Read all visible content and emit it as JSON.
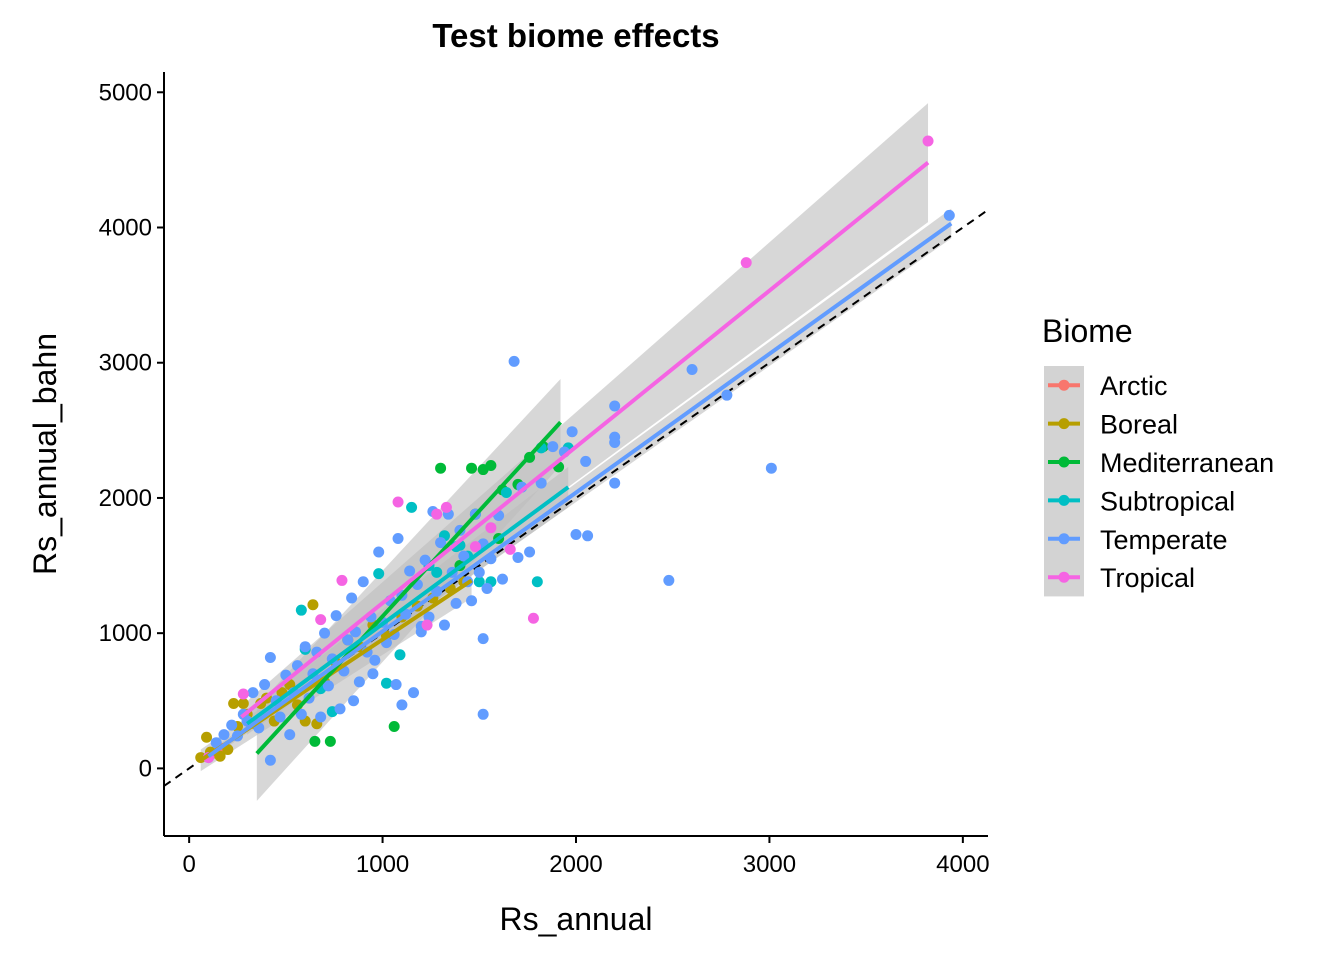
{
  "chart_data": {
    "type": "scatter",
    "title": "Test biome effects",
    "xlabel": "Rs_annual",
    "ylabel": "Rs_annual_bahn",
    "xlim": [
      -130,
      4130
    ],
    "ylim": [
      -500,
      5150
    ],
    "x_ticks": [
      0,
      1000,
      2000,
      3000,
      4000
    ],
    "y_ticks": [
      0,
      1000,
      2000,
      3000,
      4000,
      5000
    ],
    "grid": false,
    "legend": {
      "title": "Biome",
      "position": "right"
    },
    "reference_line": {
      "slope": 1,
      "intercept": 0,
      "style": "dashed"
    },
    "series": [
      {
        "name": "Arctic",
        "color": "#F8766D",
        "points": [
          [
            120,
            110
          ],
          [
            160,
            150
          ]
        ],
        "fit": null
      },
      {
        "name": "Boreal",
        "color": "#B79F00",
        "points": [
          [
            60,
            80
          ],
          [
            90,
            230
          ],
          [
            110,
            120
          ],
          [
            160,
            90
          ],
          [
            200,
            140
          ],
          [
            230,
            480
          ],
          [
            250,
            310
          ],
          [
            280,
            480
          ],
          [
            300,
            400
          ],
          [
            340,
            330
          ],
          [
            370,
            480
          ],
          [
            400,
            520
          ],
          [
            440,
            350
          ],
          [
            480,
            560
          ],
          [
            520,
            620
          ],
          [
            560,
            470
          ],
          [
            600,
            350
          ],
          [
            640,
            1210
          ],
          [
            660,
            330
          ],
          [
            700,
            640
          ],
          [
            760,
            780
          ],
          [
            820,
            950
          ],
          [
            880,
            900
          ],
          [
            950,
            1060
          ],
          [
            1020,
            980
          ],
          [
            1100,
            1120
          ],
          [
            1180,
            1200
          ],
          [
            1260,
            1260
          ],
          [
            1350,
            1330
          ],
          [
            1420,
            1380
          ]
        ],
        "fit": {
          "x": [
            60,
            1460
          ],
          "y": [
            60,
            1390
          ],
          "ci_width": [
            80,
            130
          ]
        }
      },
      {
        "name": "Mediterranean",
        "color": "#00BA38",
        "points": [
          [
            650,
            200
          ],
          [
            730,
            200
          ],
          [
            1060,
            310
          ],
          [
            1300,
            2220
          ],
          [
            1460,
            2220
          ],
          [
            1480,
            1880
          ],
          [
            1520,
            2210
          ],
          [
            1560,
            2240
          ],
          [
            1600,
            1700
          ],
          [
            1700,
            2100
          ],
          [
            1760,
            2300
          ],
          [
            1830,
            2380
          ],
          [
            1910,
            2230
          ],
          [
            1620,
            2060
          ],
          [
            1400,
            1500
          ]
        ],
        "fit": {
          "x": [
            350,
            1920
          ],
          "y": [
            110,
            2560
          ],
          "ci_width": [
            350,
            320
          ]
        }
      },
      {
        "name": "Subtropical",
        "color": "#00BFC4",
        "points": [
          [
            580,
            1170
          ],
          [
            600,
            880
          ],
          [
            680,
            590
          ],
          [
            740,
            420
          ],
          [
            980,
            1440
          ],
          [
            1020,
            630
          ],
          [
            1090,
            840
          ],
          [
            1150,
            1930
          ],
          [
            1240,
            1500
          ],
          [
            1280,
            1450
          ],
          [
            1320,
            1720
          ],
          [
            1380,
            1640
          ],
          [
            1440,
            1570
          ],
          [
            1500,
            1380
          ],
          [
            1560,
            1380
          ],
          [
            1640,
            2040
          ],
          [
            1800,
            1380
          ],
          [
            1820,
            2370
          ],
          [
            1960,
            2370
          ],
          [
            1400,
            1650
          ]
        ],
        "fit": {
          "x": [
            300,
            1960
          ],
          "y": [
            330,
            2080
          ],
          "ci_width": [
            80,
            150
          ]
        }
      },
      {
        "name": "Temperate",
        "color": "#619CFF",
        "points": [
          [
            100,
            80
          ],
          [
            140,
            190
          ],
          [
            180,
            250
          ],
          [
            220,
            320
          ],
          [
            250,
            240
          ],
          [
            280,
            400
          ],
          [
            300,
            350
          ],
          [
            330,
            560
          ],
          [
            360,
            300
          ],
          [
            390,
            620
          ],
          [
            420,
            820
          ],
          [
            450,
            500
          ],
          [
            470,
            380
          ],
          [
            500,
            690
          ],
          [
            520,
            250
          ],
          [
            540,
            560
          ],
          [
            560,
            760
          ],
          [
            580,
            400
          ],
          [
            600,
            900
          ],
          [
            620,
            520
          ],
          [
            640,
            700
          ],
          [
            660,
            860
          ],
          [
            680,
            380
          ],
          [
            700,
            1000
          ],
          [
            720,
            610
          ],
          [
            740,
            810
          ],
          [
            760,
            1130
          ],
          [
            780,
            440
          ],
          [
            800,
            720
          ],
          [
            820,
            950
          ],
          [
            840,
            1260
          ],
          [
            860,
            1010
          ],
          [
            880,
            640
          ],
          [
            900,
            1380
          ],
          [
            920,
            860
          ],
          [
            940,
            1120
          ],
          [
            960,
            800
          ],
          [
            980,
            1600
          ],
          [
            1000,
            1080
          ],
          [
            1020,
            930
          ],
          [
            1040,
            1240
          ],
          [
            1060,
            990
          ],
          [
            1080,
            1700
          ],
          [
            1100,
            1280
          ],
          [
            1120,
            1140
          ],
          [
            1140,
            1460
          ],
          [
            1160,
            560
          ],
          [
            1180,
            1360
          ],
          [
            1200,
            1010
          ],
          [
            1220,
            1540
          ],
          [
            1240,
            1120
          ],
          [
            1260,
            1900
          ],
          [
            1280,
            1310
          ],
          [
            1300,
            1670
          ],
          [
            1320,
            1060
          ],
          [
            1340,
            1880
          ],
          [
            1360,
            1450
          ],
          [
            1380,
            1220
          ],
          [
            1400,
            1760
          ],
          [
            1420,
            1570
          ],
          [
            1440,
            1380
          ],
          [
            1460,
            1240
          ],
          [
            1480,
            1880
          ],
          [
            1500,
            1450
          ],
          [
            1520,
            1660
          ],
          [
            1540,
            1330
          ],
          [
            1560,
            1550
          ],
          [
            1600,
            1870
          ],
          [
            1620,
            1400
          ],
          [
            1680,
            3010
          ],
          [
            1700,
            1560
          ],
          [
            1720,
            2080
          ],
          [
            1760,
            1600
          ],
          [
            1820,
            2110
          ],
          [
            1880,
            2380
          ],
          [
            1940,
            2340
          ],
          [
            1980,
            2490
          ],
          [
            2000,
            1730
          ],
          [
            2050,
            2270
          ],
          [
            2060,
            1720
          ],
          [
            2200,
            2680
          ],
          [
            2200,
            2410
          ],
          [
            2200,
            2450
          ],
          [
            2200,
            2110
          ],
          [
            2480,
            1390
          ],
          [
            2600,
            2950
          ],
          [
            2780,
            2760
          ],
          [
            3010,
            2220
          ],
          [
            3930,
            4090
          ],
          [
            420,
            60
          ],
          [
            1520,
            400
          ],
          [
            1520,
            960
          ],
          [
            1200,
            1050
          ],
          [
            850,
            500
          ],
          [
            950,
            700
          ],
          [
            1070,
            620
          ],
          [
            1100,
            470
          ]
        ],
        "fit": {
          "x": [
            100,
            3940
          ],
          "y": [
            90,
            4030
          ],
          "ci_width": [
            30,
            110
          ]
        }
      },
      {
        "name": "Tropical",
        "color": "#F564E3",
        "points": [
          [
            100,
            80
          ],
          [
            280,
            550
          ],
          [
            680,
            1100
          ],
          [
            790,
            1390
          ],
          [
            1080,
            1970
          ],
          [
            1230,
            1060
          ],
          [
            1280,
            1880
          ],
          [
            1330,
            1930
          ],
          [
            1560,
            1780
          ],
          [
            1660,
            1620
          ],
          [
            1780,
            1110
          ],
          [
            2880,
            3740
          ],
          [
            3820,
            4640
          ],
          [
            1480,
            1640
          ]
        ],
        "fit": {
          "x": [
            270,
            3820
          ],
          "y": [
            380,
            4480
          ],
          "ci_width": [
            80,
            440
          ]
        }
      }
    ]
  }
}
